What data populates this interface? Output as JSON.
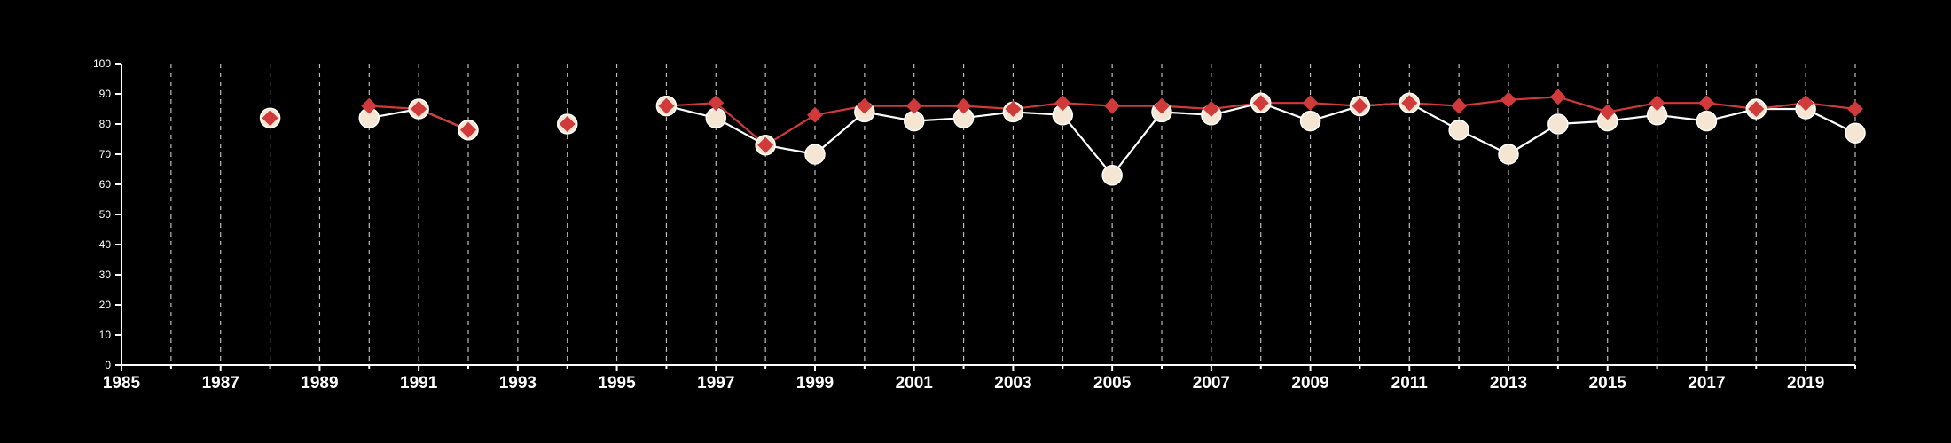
{
  "chart_data": {
    "type": "line",
    "title": "",
    "xlabel": "",
    "ylabel": "",
    "xlim": [
      1985,
      2020
    ],
    "ylim": [
      0,
      100
    ],
    "x_ticks": [
      1985,
      1987,
      1989,
      1991,
      1993,
      1995,
      1997,
      1999,
      2001,
      2003,
      2005,
      2007,
      2009,
      2011,
      2013,
      2015,
      2017,
      2019
    ],
    "y_ticks": [
      0,
      10,
      20,
      30,
      40,
      50,
      60,
      70,
      80,
      90,
      100
    ],
    "grid": "vertical dashed lines at every year",
    "background_color": "#000000",
    "axis_color": "#ffffff",
    "grid_color": "#bbbbbb",
    "series": [
      {
        "marker": "circle",
        "color": "#f5e6d3",
        "line_color": "#ffffff",
        "points": [
          {
            "x": 1988,
            "y": 82
          },
          {
            "x": 1990,
            "y": 82
          },
          {
            "x": 1991,
            "y": 85
          },
          {
            "x": 1992,
            "y": 78
          },
          {
            "x": 1994,
            "y": 80
          },
          {
            "x": 1996,
            "y": 86
          },
          {
            "x": 1997,
            "y": 82
          },
          {
            "x": 1998,
            "y": 73
          },
          {
            "x": 1999,
            "y": 70
          },
          {
            "x": 2000,
            "y": 84
          },
          {
            "x": 2001,
            "y": 81
          },
          {
            "x": 2002,
            "y": 82
          },
          {
            "x": 2003,
            "y": 84
          },
          {
            "x": 2004,
            "y": 83
          },
          {
            "x": 2005,
            "y": 63
          },
          {
            "x": 2006,
            "y": 84
          },
          {
            "x": 2007,
            "y": 83
          },
          {
            "x": 2008,
            "y": 87
          },
          {
            "x": 2009,
            "y": 81
          },
          {
            "x": 2010,
            "y": 86
          },
          {
            "x": 2011,
            "y": 87
          },
          {
            "x": 2012,
            "y": 78
          },
          {
            "x": 2013,
            "y": 70
          },
          {
            "x": 2014,
            "y": 80
          },
          {
            "x": 2015,
            "y": 81
          },
          {
            "x": 2016,
            "y": 83
          },
          {
            "x": 2017,
            "y": 81
          },
          {
            "x": 2018,
            "y": 85
          },
          {
            "x": 2019,
            "y": 85
          },
          {
            "x": 2020,
            "y": 77
          }
        ]
      },
      {
        "marker": "diamond",
        "color": "#d03a3a",
        "line_color": "#d03a3a",
        "points": [
          {
            "x": 1988,
            "y": 82
          },
          {
            "x": 1990,
            "y": 86
          },
          {
            "x": 1991,
            "y": 85
          },
          {
            "x": 1992,
            "y": 78
          },
          {
            "x": 1994,
            "y": 80
          },
          {
            "x": 1996,
            "y": 86
          },
          {
            "x": 1997,
            "y": 87
          },
          {
            "x": 1998,
            "y": 73
          },
          {
            "x": 1999,
            "y": 83
          },
          {
            "x": 2000,
            "y": 86
          },
          {
            "x": 2001,
            "y": 86
          },
          {
            "x": 2002,
            "y": 86
          },
          {
            "x": 2003,
            "y": 85
          },
          {
            "x": 2004,
            "y": 87
          },
          {
            "x": 2005,
            "y": 86
          },
          {
            "x": 2006,
            "y": 86
          },
          {
            "x": 2007,
            "y": 85
          },
          {
            "x": 2008,
            "y": 87
          },
          {
            "x": 2009,
            "y": 87
          },
          {
            "x": 2010,
            "y": 86
          },
          {
            "x": 2011,
            "y": 87
          },
          {
            "x": 2012,
            "y": 86
          },
          {
            "x": 2013,
            "y": 88
          },
          {
            "x": 2014,
            "y": 89
          },
          {
            "x": 2015,
            "y": 84
          },
          {
            "x": 2016,
            "y": 87
          },
          {
            "x": 2017,
            "y": 87
          },
          {
            "x": 2018,
            "y": 85
          },
          {
            "x": 2019,
            "y": 87
          },
          {
            "x": 2020,
            "y": 85
          }
        ]
      }
    ]
  }
}
